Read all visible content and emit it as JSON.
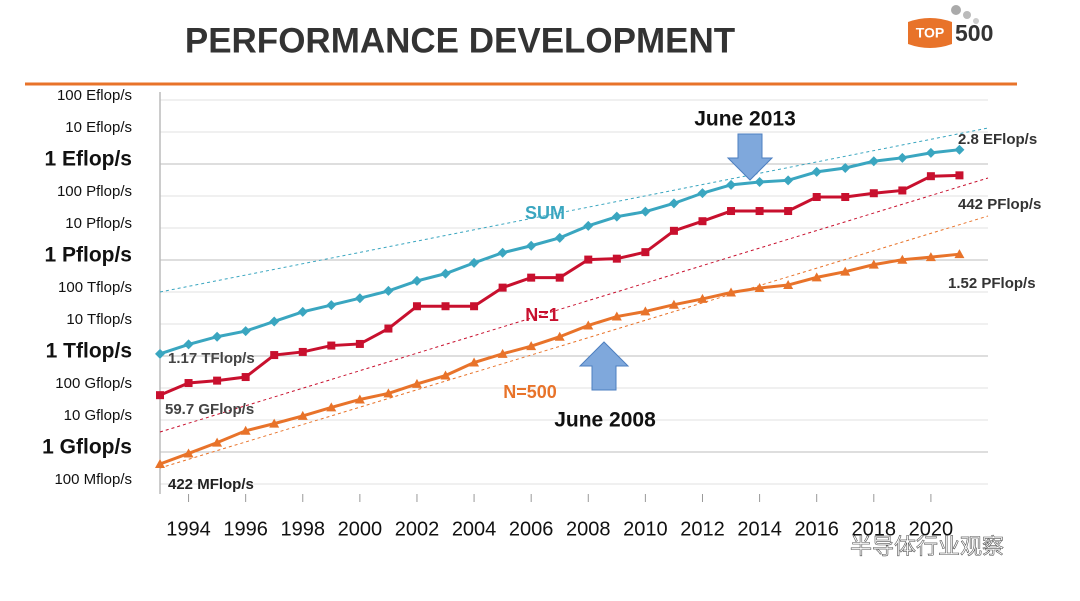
{
  "logo": {
    "left": "TOP",
    "right": "500"
  },
  "watermark": "半导体行业观察",
  "chart_data": {
    "type": "line",
    "title": "PERFORMANCE DEVELOPMENT",
    "log_scale": true,
    "grid": true,
    "x": [
      1993,
      1994,
      1995,
      1996,
      1997,
      1998,
      1999,
      2000,
      2001,
      2002,
      2003,
      2004,
      2005,
      2006,
      2007,
      2008,
      2009,
      2010,
      2011,
      2012,
      2013,
      2014,
      2015,
      2016,
      2017,
      2018,
      2019,
      2020,
      2021
    ],
    "xlim": [
      1993,
      2022
    ],
    "xticks": [
      1994,
      1996,
      1998,
      2000,
      2002,
      2004,
      2006,
      2008,
      2010,
      2012,
      2014,
      2016,
      2018,
      2020
    ],
    "ylim": [
      100000000,
      100000000000000000000
    ],
    "yticks": [
      {
        "value": 100000000,
        "label": "100 Mflop/s"
      },
      {
        "value": 1000000000,
        "label": "1 Gflop/s"
      },
      {
        "value": 10000000000,
        "label": "10 Gflop/s"
      },
      {
        "value": 100000000000,
        "label": "100 Gflop/s"
      },
      {
        "value": 1000000000000,
        "label": "1 Tflop/s"
      },
      {
        "value": 10000000000000,
        "label": "10 Tflop/s"
      },
      {
        "value": 100000000000000,
        "label": "100 Tflop/s"
      },
      {
        "value": 1000000000000000,
        "label": "1 Pflop/s"
      },
      {
        "value": 10000000000000000,
        "label": "10 Pflop/s"
      },
      {
        "value": 100000000000000000,
        "label": "100 Pflop/s"
      },
      {
        "value": 1000000000000000000,
        "label": "1 Eflop/s"
      },
      {
        "value": 10000000000000000000,
        "label": "10 Eflop/s"
      },
      {
        "value": 100000000000000000000,
        "label": "100 Eflop/s"
      }
    ],
    "series": [
      {
        "name": "SUM",
        "color": "#3aa6c0",
        "marker": "diamond",
        "values": [
          1170000000000.0,
          2300000000000.0,
          4000000000000.0,
          6000000000000.0,
          12000000000000.0,
          24000000000000.0,
          39000000000000.0,
          64000000000000.0,
          108000000000000.0,
          222000000000000.0,
          375000000000000.0,
          813000000000000.0,
          1690000000000000.0,
          2790000000000000.0,
          4920000000000000.0,
          1.17e+16,
          2.26e+16,
          3.24e+16,
          5.89e+16,
          1.23e+17,
          2.23e+17,
          2.74e+17,
          3.09e+17,
          5.67e+17,
          7.49e+17,
          1.22e+18,
          1.56e+18,
          2.22e+18,
          2.8e+18
        ]
      },
      {
        "name": "N=1",
        "color": "#c8102e",
        "marker": "square",
        "values": [
          59700000000.0,
          143000000000.0,
          170000000000.0,
          220000000000.0,
          1070000000000.0,
          1340000000000.0,
          2120000000000.0,
          2380000000000.0,
          7200000000000.0,
          35900000000000.0,
          35900000000000.0,
          35900000000000.0,
          137000000000000.0,
          281000000000000.0,
          281000000000000.0,
          1030000000000000.0,
          1100000000000000.0,
          1760000000000000.0,
          8160000000000000.0,
          1.63e+16,
          3.39e+16,
          3.39e+16,
          3.39e+16,
          9.3e+16,
          9.3e+16,
          1.22e+17,
          1.49e+17,
          4.16e+17,
          4.42e+17
        ]
      },
      {
        "name": "N=500",
        "color": "#e8732a",
        "marker": "triangle",
        "values": [
          422000000.0,
          900000000.0,
          1960000000.0,
          4600000000.0,
          7700000000.0,
          13400000000.0,
          24700000000.0,
          43800000000.0,
          67800000000.0,
          134000000000.0,
          245000000000.0,
          624000000000.0,
          1170000000000.0,
          2030000000000.0,
          4000000000000.0,
          9000000000000.0,
          17100000000000.0,
          24700000000000.0,
          40100000000000.0,
          60800000000000.0,
          96600000000000.0,
          133000000000000.0,
          165000000000000.0,
          286000000000000.0,
          432000000000000.0,
          716000000000000.0,
          1020000000000000.0,
          1230000000000000.0,
          1520000000000000.0
        ]
      }
    ],
    "annotations": [
      "June 2013",
      "June 2008"
    ],
    "end_labels": [
      "1.17 TFlop/s",
      "59.7 GFlop/s",
      "422 MFlop/s",
      "2.8 EFlop/s",
      "442 PFlop/s",
      "1.52 PFlop/s"
    ]
  }
}
